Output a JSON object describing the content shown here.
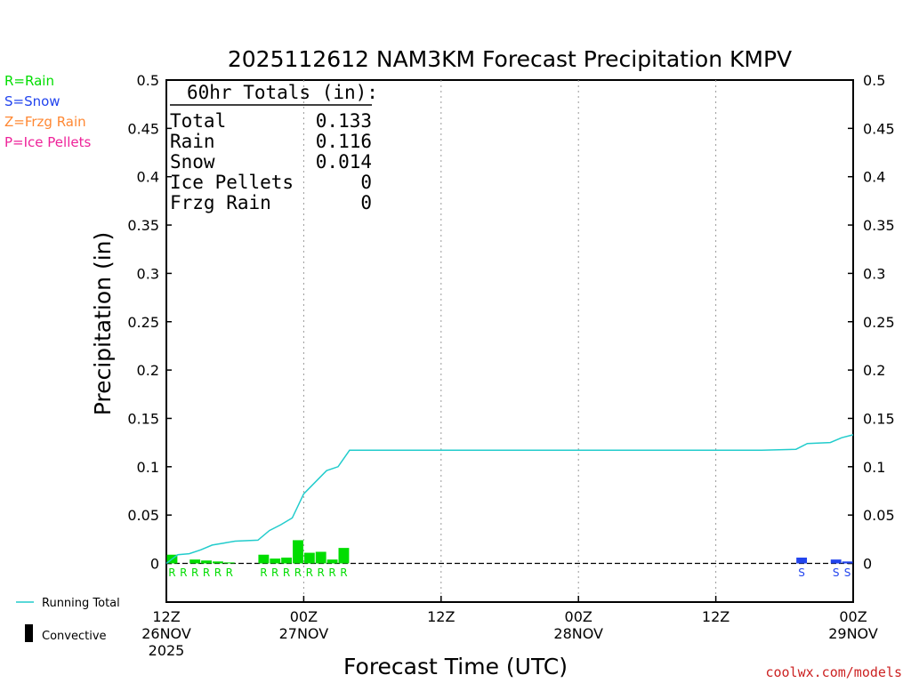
{
  "colors": {
    "rain": "#00dd00",
    "snow": "#2244ee",
    "frzg_rain": "#ff8833",
    "ice_pellets": "#ee2299",
    "running_total": "#22cccc",
    "convective": "#000000",
    "credit": "#cc2222"
  },
  "ptype_legend": [
    {
      "label": "R=Rain",
      "color": "#00dd00"
    },
    {
      "label": "S=Snow",
      "color": "#2244ee"
    },
    {
      "label": "Z=Frzg Rain",
      "color": "#ff8833"
    },
    {
      "label": "P=Ice Pellets",
      "color": "#ee2299"
    }
  ],
  "series_key": {
    "running_total": "Running Total",
    "convective": "Convective"
  },
  "totals_box": {
    "header": "60hr Totals (in):",
    "rows": [
      {
        "label": "Total",
        "value": "0.133"
      },
      {
        "label": "Rain",
        "value": "0.116"
      },
      {
        "label": "Snow",
        "value": "0.014"
      },
      {
        "label": "Ice Pellets",
        "value": "0"
      },
      {
        "label": "Frzg Rain",
        "value": "0"
      }
    ]
  },
  "credit": "coolwx.com/models",
  "chart_data": {
    "type": "bar",
    "title": "2025112612 NAM3KM Forecast Precipitation KMPV",
    "xlabel": "Forecast Time (UTC)",
    "ylabel": "Precipitation (in)",
    "xlim": [
      0,
      60
    ],
    "ylim": [
      -0.04,
      0.5
    ],
    "yticks": [
      0,
      0.05,
      0.1,
      0.15,
      0.2,
      0.25,
      0.3,
      0.35,
      0.4,
      0.45,
      0.5
    ],
    "ytick_labels": [
      "0",
      "0.05",
      "0.1",
      "0.15",
      "0.2",
      "0.25",
      "0.3",
      "0.35",
      "0.4",
      "0.45",
      "0.5"
    ],
    "xticks": [
      {
        "hour": 0,
        "lines": [
          "12Z",
          "26NOV",
          "2025"
        ]
      },
      {
        "hour": 12,
        "lines": [
          "00Z",
          "27NOV"
        ]
      },
      {
        "hour": 24,
        "lines": [
          "12Z"
        ]
      },
      {
        "hour": 36,
        "lines": [
          "00Z",
          "28NOV"
        ]
      },
      {
        "hour": 48,
        "lines": [
          "12Z"
        ]
      },
      {
        "hour": 60,
        "lines": [
          "00Z",
          "29NOV"
        ]
      }
    ],
    "grid": "vertical dotted at 00Z/12Z",
    "hourly_precip": [
      {
        "hour": 1,
        "value": 0.009,
        "type": "R"
      },
      {
        "hour": 2,
        "value": 0.0,
        "type": "R"
      },
      {
        "hour": 3,
        "value": 0.004,
        "type": "R"
      },
      {
        "hour": 4,
        "value": 0.003,
        "type": "R"
      },
      {
        "hour": 5,
        "value": 0.002,
        "type": "R"
      },
      {
        "hour": 6,
        "value": 0.001,
        "type": "R"
      },
      {
        "hour": 9,
        "value": 0.009,
        "type": "R"
      },
      {
        "hour": 10,
        "value": 0.005,
        "type": "R"
      },
      {
        "hour": 11,
        "value": 0.006,
        "type": "R"
      },
      {
        "hour": 12,
        "value": 0.024,
        "type": "R"
      },
      {
        "hour": 13,
        "value": 0.011,
        "type": "R"
      },
      {
        "hour": 14,
        "value": 0.012,
        "type": "R"
      },
      {
        "hour": 15,
        "value": 0.004,
        "type": "R"
      },
      {
        "hour": 16,
        "value": 0.016,
        "type": "R"
      },
      {
        "hour": 56,
        "value": 0.006,
        "type": "S"
      },
      {
        "hour": 59,
        "value": 0.004,
        "type": "S"
      },
      {
        "hour": 60,
        "value": 0.002,
        "type": "S"
      }
    ],
    "running_total": [
      {
        "hour": 0,
        "value": 0.0
      },
      {
        "hour": 1,
        "value": 0.009
      },
      {
        "hour": 2,
        "value": 0.01
      },
      {
        "hour": 3,
        "value": 0.014
      },
      {
        "hour": 4,
        "value": 0.019
      },
      {
        "hour": 5,
        "value": 0.021
      },
      {
        "hour": 6,
        "value": 0.023
      },
      {
        "hour": 8,
        "value": 0.024
      },
      {
        "hour": 9,
        "value": 0.034
      },
      {
        "hour": 10,
        "value": 0.04
      },
      {
        "hour": 11,
        "value": 0.047
      },
      {
        "hour": 12,
        "value": 0.072
      },
      {
        "hour": 13,
        "value": 0.084
      },
      {
        "hour": 14,
        "value": 0.096
      },
      {
        "hour": 15,
        "value": 0.1
      },
      {
        "hour": 16,
        "value": 0.117
      },
      {
        "hour": 52,
        "value": 0.117
      },
      {
        "hour": 55,
        "value": 0.118
      },
      {
        "hour": 56,
        "value": 0.124
      },
      {
        "hour": 58,
        "value": 0.125
      },
      {
        "hour": 59,
        "value": 0.13
      },
      {
        "hour": 60,
        "value": 0.133
      }
    ]
  }
}
